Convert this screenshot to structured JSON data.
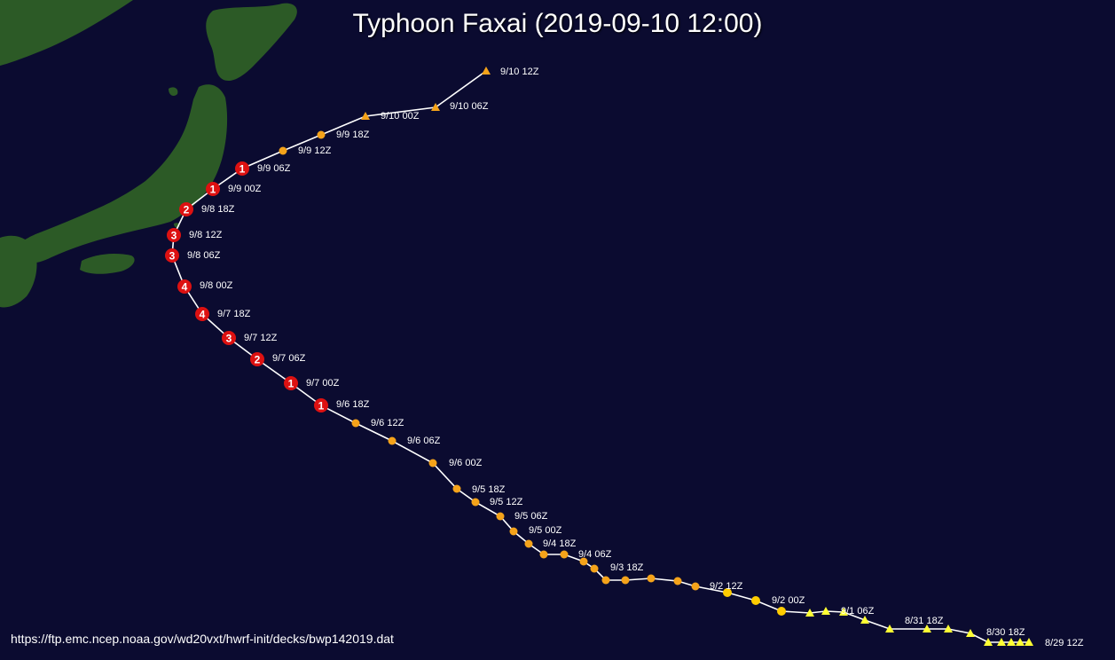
{
  "title": "Typhoon Faxai (2019-09-10 12:00)",
  "source": "https://ftp.emc.ncep.noaa.gov/wd20vxt/hwrf-init/decks/bwp142019.dat",
  "colors": {
    "ocean": "#0b0b30",
    "land": "#2c5a26",
    "track_line": "#ffffff",
    "depression": "#ffff33",
    "tropical_storm": "#ffcc00",
    "storm": "#f5a31a",
    "typhoon": "#dd1111",
    "label_text": "#ffffff"
  },
  "track": [
    {
      "time": "8/29 12Z",
      "symbol": "triangle",
      "category": "depression"
    },
    {
      "time": "",
      "symbol": "triangle",
      "category": "depression"
    },
    {
      "time": "",
      "symbol": "triangle",
      "category": "depression"
    },
    {
      "time": "",
      "symbol": "triangle",
      "category": "depression"
    },
    {
      "time": "8/30 18Z",
      "symbol": "triangle",
      "category": "depression"
    },
    {
      "time": "",
      "symbol": "triangle",
      "category": "depression"
    },
    {
      "time": "",
      "symbol": "triangle",
      "category": "depression"
    },
    {
      "time": "",
      "symbol": "triangle",
      "category": "depression"
    },
    {
      "time": "8/31 18Z",
      "symbol": "triangle",
      "category": "depression"
    },
    {
      "time": "",
      "symbol": "triangle",
      "category": "depression"
    },
    {
      "time": "9/1 06Z",
      "symbol": "triangle",
      "category": "depression"
    },
    {
      "time": "",
      "symbol": "triangle",
      "category": "depression"
    },
    {
      "time": "",
      "symbol": "triangle",
      "category": "depression"
    },
    {
      "time": "9/2 00Z",
      "symbol": "circle",
      "category": "tropical_storm"
    },
    {
      "time": "",
      "symbol": "circle",
      "category": "tropical_storm"
    },
    {
      "time": "9/2 12Z",
      "symbol": "circle",
      "category": "tropical_storm"
    },
    {
      "time": "",
      "symbol": "circle",
      "category": "storm"
    },
    {
      "time": "",
      "symbol": "circle",
      "category": "storm"
    },
    {
      "time": "",
      "symbol": "circle",
      "category": "storm"
    },
    {
      "time": "",
      "symbol": "circle",
      "category": "storm"
    },
    {
      "time": "9/3 18Z",
      "symbol": "circle",
      "category": "storm"
    },
    {
      "time": "",
      "symbol": "circle",
      "category": "storm"
    },
    {
      "time": "9/4 06Z",
      "symbol": "circle",
      "category": "storm"
    },
    {
      "time": "",
      "symbol": "circle",
      "category": "storm"
    },
    {
      "time": "",
      "symbol": "circle",
      "category": "storm"
    },
    {
      "time": "9/4 18Z",
      "symbol": "circle",
      "category": "storm"
    },
    {
      "time": "9/5 00Z",
      "symbol": "circle",
      "category": "storm"
    },
    {
      "time": "9/5 06Z",
      "symbol": "circle",
      "category": "storm"
    },
    {
      "time": "9/5 12Z",
      "symbol": "circle",
      "category": "storm"
    },
    {
      "time": "9/5 18Z",
      "symbol": "circle",
      "category": "storm"
    },
    {
      "time": "9/6 00Z",
      "symbol": "circle",
      "category": "storm"
    },
    {
      "time": "9/6 06Z",
      "symbol": "circle",
      "category": "storm"
    },
    {
      "time": "9/6 12Z",
      "symbol": "circle",
      "category": "storm"
    },
    {
      "time": "9/6 18Z",
      "symbol": "circle",
      "category": "typhoon",
      "number": "1"
    },
    {
      "time": "9/7 00Z",
      "symbol": "circle",
      "category": "typhoon",
      "number": "1"
    },
    {
      "time": "9/7 06Z",
      "symbol": "circle",
      "category": "typhoon",
      "number": "2"
    },
    {
      "time": "9/7 12Z",
      "symbol": "circle",
      "category": "typhoon",
      "number": "3"
    },
    {
      "time": "9/7 18Z",
      "symbol": "circle",
      "category": "typhoon",
      "number": "4"
    },
    {
      "time": "9/8 00Z",
      "symbol": "circle",
      "category": "typhoon",
      "number": "4"
    },
    {
      "time": "9/8 06Z",
      "symbol": "circle",
      "category": "typhoon",
      "number": "3"
    },
    {
      "time": "9/8 12Z",
      "symbol": "circle",
      "category": "typhoon",
      "number": "3"
    },
    {
      "time": "9/8 18Z",
      "symbol": "circle",
      "category": "typhoon",
      "number": "2"
    },
    {
      "time": "9/9 00Z",
      "symbol": "circle",
      "category": "typhoon",
      "number": "1"
    },
    {
      "time": "9/9 06Z",
      "symbol": "circle",
      "category": "typhoon",
      "number": "1"
    },
    {
      "time": "9/9 12Z",
      "symbol": "circle",
      "category": "storm"
    },
    {
      "time": "9/9 18Z",
      "symbol": "circle",
      "category": "storm"
    },
    {
      "time": "9/10 00Z",
      "symbol": "triangle",
      "category": "storm"
    },
    {
      "time": "9/10 06Z",
      "symbol": "triangle",
      "category": "storm"
    },
    {
      "time": "9/10 12Z",
      "symbol": "triangle",
      "category": "storm"
    }
  ]
}
